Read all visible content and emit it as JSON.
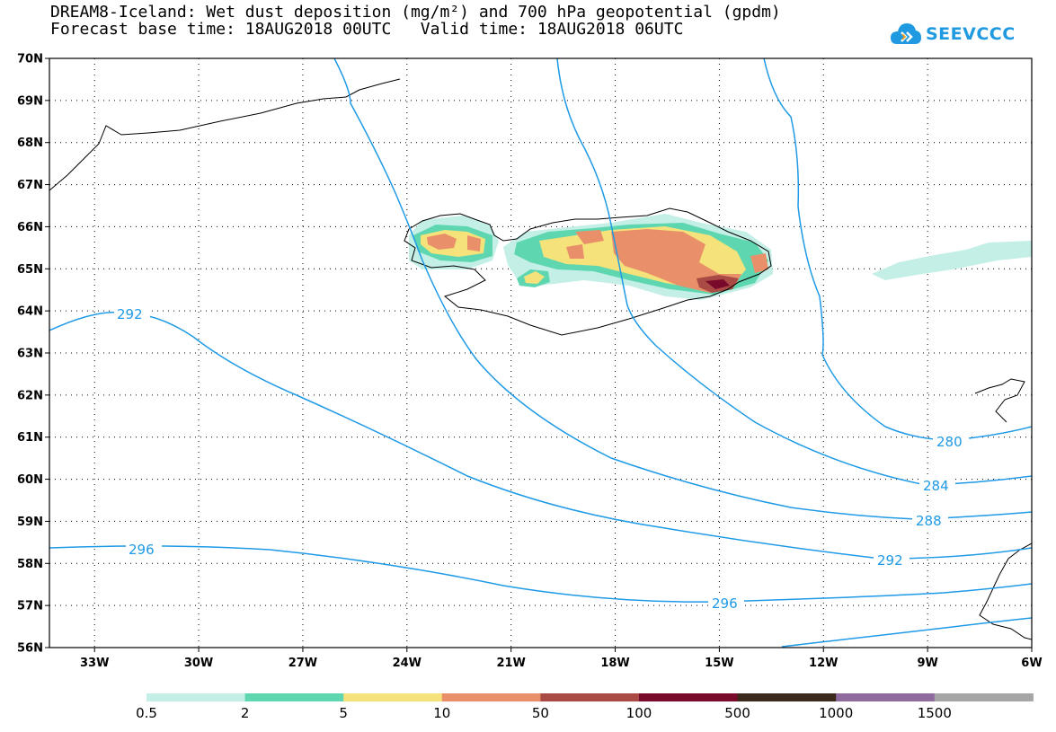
{
  "title_line1": "DREAM8-Iceland: Wet dust deposition (mg/m²) and 700 hPa geopotential (gpdm)",
  "title_line2": "Forecast base time: 18AUG2018 00UTC   Valid time: 18AUG2018 06UTC",
  "logo_text": "SEEVCCC",
  "map": {
    "lat_range": [
      56,
      70
    ],
    "lon_range": [
      -34.3,
      -6
    ],
    "lat_ticks": [
      "70N",
      "69N",
      "68N",
      "67N",
      "66N",
      "65N",
      "64N",
      "63N",
      "62N",
      "61N",
      "60N",
      "59N",
      "58N",
      "57N",
      "56N"
    ],
    "lon_ticks": [
      "33W",
      "30W",
      "27W",
      "24W",
      "21W",
      "18W",
      "15W",
      "12W",
      "9W",
      "6W"
    ],
    "gridlines": true
  },
  "contour_labels": [
    "292",
    "296",
    "280",
    "284",
    "288",
    "292",
    "296"
  ],
  "colorbar": {
    "colors": [
      "#c4efe7",
      "#5ed7b0",
      "#f5e27a",
      "#e9906a",
      "#a94a45",
      "#7a0a2b",
      "#3b2a1c",
      "#8e6a9f",
      "#a6a6a6"
    ],
    "labels": [
      "0.5",
      "2",
      "5",
      "10",
      "50",
      "100",
      "500",
      "1000",
      "1500"
    ]
  }
}
